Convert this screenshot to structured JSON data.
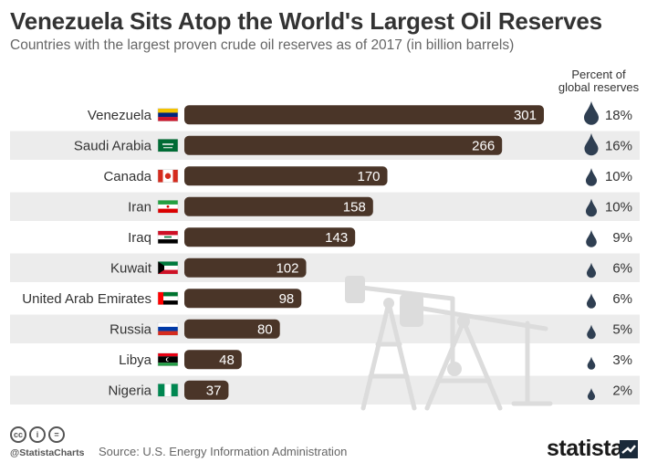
{
  "header": {
    "title": "Venezuela Sits Atop the World's Largest Oil Reserves",
    "subtitle": "Countries with the largest proven crude oil reserves as of 2017 (in billion barrels)",
    "percent_header_line1": "Percent of",
    "percent_header_line2": "global reserves"
  },
  "footer": {
    "handle": "@StatistaCharts",
    "source": "Source: U.S. Energy Information Administration",
    "brand": "statista",
    "license_icons": [
      "creative-commons-icon",
      "attribution-icon",
      "no-derivatives-icon"
    ]
  },
  "colors": {
    "bar": "#4a3528",
    "bar_label": "#ffffff",
    "stripe": "#ececec",
    "drop": "#2f3f52",
    "illustration": "#d8d8d8"
  },
  "chart_data": {
    "type": "bar",
    "orientation": "horizontal",
    "categories": [
      "Venezuela",
      "Saudi Arabia",
      "Canada",
      "Iran",
      "Iraq",
      "Kuwait",
      "United Arab Emirates",
      "Russia",
      "Libya",
      "Nigeria"
    ],
    "values": [
      301,
      266,
      170,
      158,
      143,
      102,
      98,
      80,
      48,
      37
    ],
    "percent_labels": [
      "18%",
      "16%",
      "10%",
      "10%",
      "9%",
      "6%",
      "6%",
      "5%",
      "3%",
      "2%"
    ],
    "percent_values": [
      18,
      16,
      10,
      10,
      9,
      6,
      6,
      5,
      3,
      2
    ],
    "flags": [
      "venezuela-flag",
      "saudi-arabia-flag",
      "canada-flag",
      "iran-flag",
      "iraq-flag",
      "kuwait-flag",
      "uae-flag",
      "russia-flag",
      "libya-flag",
      "nigeria-flag"
    ],
    "xlim": [
      0,
      301
    ],
    "grid": false,
    "legend": "none"
  }
}
